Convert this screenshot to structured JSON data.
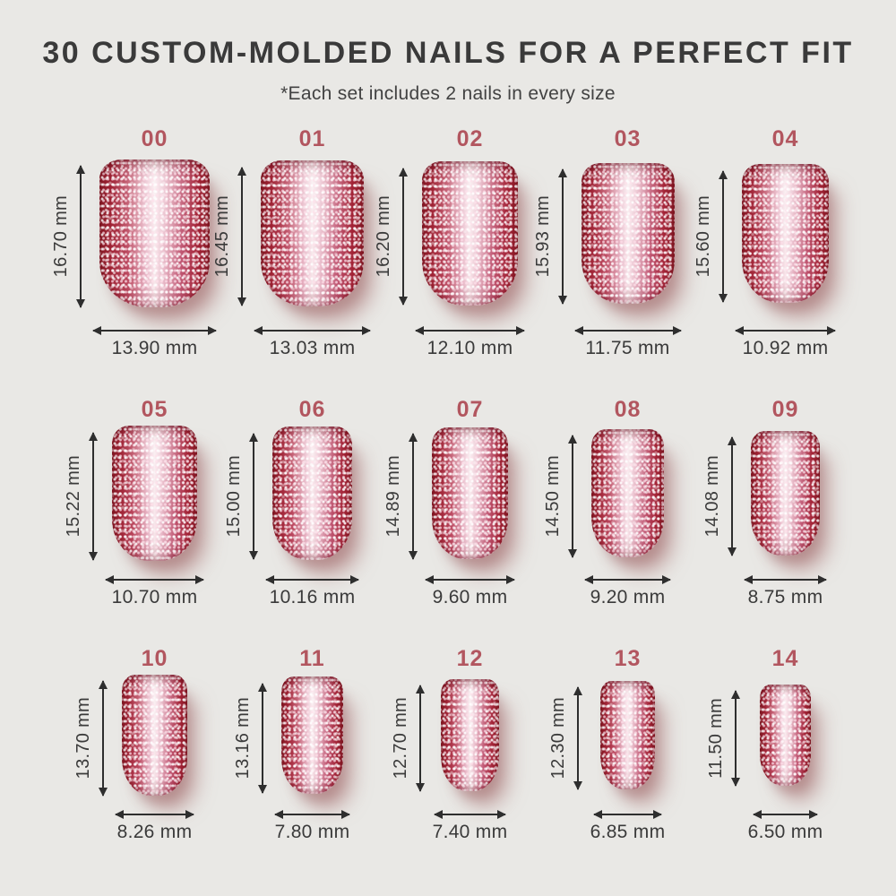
{
  "header": {
    "title": "30 CUSTOM-MOLDED NAILS FOR A PERFECT FIT",
    "subtitle": "*Each set includes 2 nails in every size"
  },
  "units": "mm",
  "colors": {
    "background": "#e9e8e5",
    "size_label_accent": "#b2565f",
    "measurement_text": "#3a3a3a",
    "arrow": "#2e2e2e",
    "nail_edge_red": "#871a26",
    "nail_highlight": "#f7e6ea"
  },
  "sizes": [
    {
      "label": "00",
      "height_mm": 16.7,
      "width_mm": 13.9,
      "height_text": "16.70 mm",
      "width_text": "13.90 mm"
    },
    {
      "label": "01",
      "height_mm": 16.45,
      "width_mm": 13.03,
      "height_text": "16.45 mm",
      "width_text": "13.03 mm"
    },
    {
      "label": "02",
      "height_mm": 16.2,
      "width_mm": 12.1,
      "height_text": "16.20 mm",
      "width_text": "12.10 mm"
    },
    {
      "label": "03",
      "height_mm": 15.93,
      "width_mm": 11.75,
      "height_text": "15.93 mm",
      "width_text": "11.75 mm"
    },
    {
      "label": "04",
      "height_mm": 15.6,
      "width_mm": 10.92,
      "height_text": "15.60 mm",
      "width_text": "10.92 mm"
    },
    {
      "label": "05",
      "height_mm": 15.22,
      "width_mm": 10.7,
      "height_text": "15.22 mm",
      "width_text": "10.70 mm"
    },
    {
      "label": "06",
      "height_mm": 15.0,
      "width_mm": 10.16,
      "height_text": "15.00 mm",
      "width_text": "10.16 mm"
    },
    {
      "label": "07",
      "height_mm": 14.89,
      "width_mm": 9.6,
      "height_text": "14.89 mm",
      "width_text": "9.60 mm"
    },
    {
      "label": "08",
      "height_mm": 14.5,
      "width_mm": 9.2,
      "height_text": "14.50 mm",
      "width_text": "9.20 mm"
    },
    {
      "label": "09",
      "height_mm": 14.08,
      "width_mm": 8.75,
      "height_text": "14.08 mm",
      "width_text": "8.75 mm"
    },
    {
      "label": "10",
      "height_mm": 13.7,
      "width_mm": 8.26,
      "height_text": "13.70 mm",
      "width_text": "8.26 mm"
    },
    {
      "label": "11",
      "height_mm": 13.16,
      "width_mm": 7.8,
      "height_text": "13.16 mm",
      "width_text": "7.80 mm"
    },
    {
      "label": "12",
      "height_mm": 12.7,
      "width_mm": 7.4,
      "height_text": "12.70 mm",
      "width_text": "7.40 mm"
    },
    {
      "label": "13",
      "height_mm": 12.3,
      "width_mm": 6.85,
      "height_text": "12.30 mm",
      "width_text": "6.85 mm"
    },
    {
      "label": "14",
      "height_mm": 11.5,
      "width_mm": 6.5,
      "height_text": "11.50 mm",
      "width_text": "6.50 mm"
    }
  ]
}
